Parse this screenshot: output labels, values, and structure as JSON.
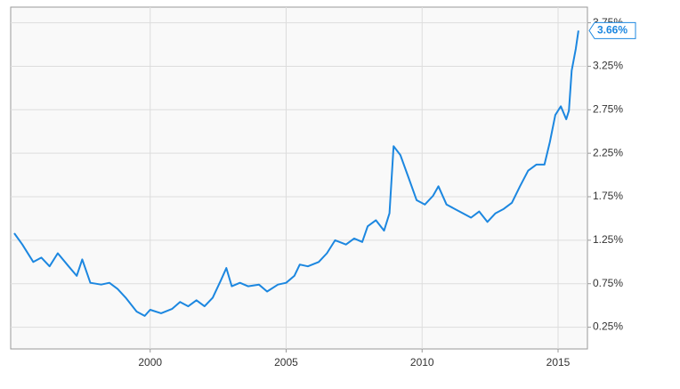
{
  "chart_data": {
    "type": "line",
    "x": [
      1995.0,
      1995.3,
      1995.7,
      1996.0,
      1996.3,
      1996.6,
      1997.0,
      1997.3,
      1997.5,
      1997.8,
      1998.2,
      1998.5,
      1998.8,
      1999.1,
      1999.5,
      1999.8,
      2000.0,
      2000.4,
      2000.8,
      2001.1,
      2001.4,
      2001.7,
      2002.0,
      2002.3,
      2002.6,
      2002.8,
      2003.0,
      2003.3,
      2003.6,
      2004.0,
      2004.3,
      2004.7,
      2005.0,
      2005.3,
      2005.5,
      2005.8,
      2006.2,
      2006.5,
      2006.8,
      2007.2,
      2007.5,
      2007.8,
      2008.0,
      2008.3,
      2008.6,
      2008.8,
      2008.95,
      2009.2,
      2009.5,
      2009.8,
      2010.1,
      2010.4,
      2010.6,
      2010.9,
      2011.2,
      2011.5,
      2011.8,
      2012.1,
      2012.4,
      2012.7,
      2013.0,
      2013.3,
      2013.6,
      2013.9,
      2014.2,
      2014.5,
      2014.7,
      2014.9,
      2015.1,
      2015.3,
      2015.4,
      2015.5,
      2015.65,
      2015.75
    ],
    "values": [
      1.33,
      1.2,
      1.0,
      1.05,
      0.95,
      1.1,
      0.95,
      0.84,
      1.03,
      0.76,
      0.74,
      0.76,
      0.69,
      0.59,
      0.43,
      0.38,
      0.45,
      0.41,
      0.46,
      0.54,
      0.49,
      0.56,
      0.49,
      0.59,
      0.79,
      0.93,
      0.72,
      0.76,
      0.72,
      0.74,
      0.66,
      0.74,
      0.76,
      0.84,
      0.97,
      0.95,
      1.0,
      1.1,
      1.25,
      1.2,
      1.27,
      1.23,
      1.41,
      1.48,
      1.36,
      1.56,
      2.33,
      2.23,
      1.97,
      1.71,
      1.66,
      1.76,
      1.87,
      1.66,
      1.61,
      1.56,
      1.51,
      1.58,
      1.46,
      1.56,
      1.61,
      1.68,
      1.87,
      2.05,
      2.12,
      2.12,
      2.38,
      2.69,
      2.79,
      2.64,
      2.74,
      3.2,
      3.45,
      3.66
    ],
    "value_labels": [
      null,
      null,
      null,
      null,
      null,
      null,
      null,
      null,
      null,
      null,
      null,
      null,
      null,
      null,
      null,
      null,
      null,
      null,
      null,
      null,
      null,
      null,
      null,
      null,
      null,
      null,
      null,
      null,
      null,
      null,
      null,
      null,
      null,
      null,
      null,
      null,
      null,
      null,
      null,
      null,
      null,
      null,
      null,
      null,
      null,
      null,
      null,
      null,
      null,
      null,
      null,
      null,
      null,
      null,
      null,
      null,
      null,
      null,
      null,
      null,
      null,
      null,
      null,
      null,
      null,
      null,
      null,
      null,
      null,
      null,
      null,
      null,
      null,
      "3.66%"
    ],
    "color": "#1c87e0",
    "xlim": [
      1994.87,
      2016.08
    ],
    "xticks": [
      2000,
      2005,
      2010,
      2015
    ],
    "ylim": [
      0,
      3.93
    ],
    "yticks": [
      {
        "value": 0.25,
        "label": "0.25%"
      },
      {
        "value": 0.75,
        "label": "0.75%"
      },
      {
        "value": 1.25,
        "label": "1.25%"
      },
      {
        "value": 1.75,
        "label": "1.75%"
      },
      {
        "value": 2.25,
        "label": "2.25%"
      },
      {
        "value": 2.75,
        "label": "2.75%"
      },
      {
        "value": 3.25,
        "label": "3.25%"
      },
      {
        "value": 3.75,
        "label": "3.75%"
      }
    ],
    "grid": true
  }
}
